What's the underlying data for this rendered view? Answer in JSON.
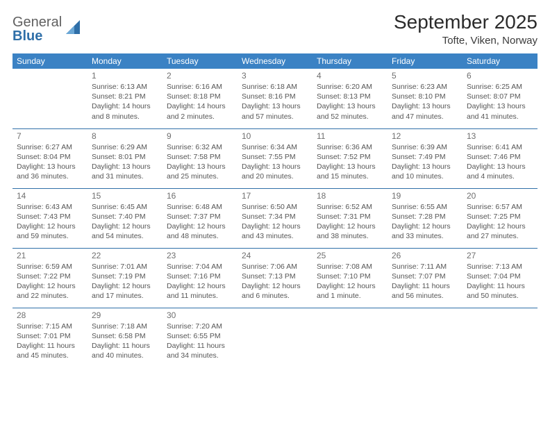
{
  "brand": {
    "general": "General",
    "blue": "Blue"
  },
  "title": "September 2025",
  "location": "Tofte, Viken, Norway",
  "colors": {
    "header_bg": "#3b82c4",
    "row_divider": "#2f6fa8",
    "text_dark": "#333333",
    "text_mid": "#555555",
    "daynum": "#6f6f6f",
    "background": "#ffffff"
  },
  "weekdays": [
    "Sunday",
    "Monday",
    "Tuesday",
    "Wednesday",
    "Thursday",
    "Friday",
    "Saturday"
  ],
  "weeks": [
    [
      null,
      {
        "n": "1",
        "rise": "Sunrise: 6:13 AM",
        "set": "Sunset: 8:21 PM",
        "day": "Daylight: 14 hours and 8 minutes."
      },
      {
        "n": "2",
        "rise": "Sunrise: 6:16 AM",
        "set": "Sunset: 8:18 PM",
        "day": "Daylight: 14 hours and 2 minutes."
      },
      {
        "n": "3",
        "rise": "Sunrise: 6:18 AM",
        "set": "Sunset: 8:16 PM",
        "day": "Daylight: 13 hours and 57 minutes."
      },
      {
        "n": "4",
        "rise": "Sunrise: 6:20 AM",
        "set": "Sunset: 8:13 PM",
        "day": "Daylight: 13 hours and 52 minutes."
      },
      {
        "n": "5",
        "rise": "Sunrise: 6:23 AM",
        "set": "Sunset: 8:10 PM",
        "day": "Daylight: 13 hours and 47 minutes."
      },
      {
        "n": "6",
        "rise": "Sunrise: 6:25 AM",
        "set": "Sunset: 8:07 PM",
        "day": "Daylight: 13 hours and 41 minutes."
      }
    ],
    [
      {
        "n": "7",
        "rise": "Sunrise: 6:27 AM",
        "set": "Sunset: 8:04 PM",
        "day": "Daylight: 13 hours and 36 minutes."
      },
      {
        "n": "8",
        "rise": "Sunrise: 6:29 AM",
        "set": "Sunset: 8:01 PM",
        "day": "Daylight: 13 hours and 31 minutes."
      },
      {
        "n": "9",
        "rise": "Sunrise: 6:32 AM",
        "set": "Sunset: 7:58 PM",
        "day": "Daylight: 13 hours and 25 minutes."
      },
      {
        "n": "10",
        "rise": "Sunrise: 6:34 AM",
        "set": "Sunset: 7:55 PM",
        "day": "Daylight: 13 hours and 20 minutes."
      },
      {
        "n": "11",
        "rise": "Sunrise: 6:36 AM",
        "set": "Sunset: 7:52 PM",
        "day": "Daylight: 13 hours and 15 minutes."
      },
      {
        "n": "12",
        "rise": "Sunrise: 6:39 AM",
        "set": "Sunset: 7:49 PM",
        "day": "Daylight: 13 hours and 10 minutes."
      },
      {
        "n": "13",
        "rise": "Sunrise: 6:41 AM",
        "set": "Sunset: 7:46 PM",
        "day": "Daylight: 13 hours and 4 minutes."
      }
    ],
    [
      {
        "n": "14",
        "rise": "Sunrise: 6:43 AM",
        "set": "Sunset: 7:43 PM",
        "day": "Daylight: 12 hours and 59 minutes."
      },
      {
        "n": "15",
        "rise": "Sunrise: 6:45 AM",
        "set": "Sunset: 7:40 PM",
        "day": "Daylight: 12 hours and 54 minutes."
      },
      {
        "n": "16",
        "rise": "Sunrise: 6:48 AM",
        "set": "Sunset: 7:37 PM",
        "day": "Daylight: 12 hours and 48 minutes."
      },
      {
        "n": "17",
        "rise": "Sunrise: 6:50 AM",
        "set": "Sunset: 7:34 PM",
        "day": "Daylight: 12 hours and 43 minutes."
      },
      {
        "n": "18",
        "rise": "Sunrise: 6:52 AM",
        "set": "Sunset: 7:31 PM",
        "day": "Daylight: 12 hours and 38 minutes."
      },
      {
        "n": "19",
        "rise": "Sunrise: 6:55 AM",
        "set": "Sunset: 7:28 PM",
        "day": "Daylight: 12 hours and 33 minutes."
      },
      {
        "n": "20",
        "rise": "Sunrise: 6:57 AM",
        "set": "Sunset: 7:25 PM",
        "day": "Daylight: 12 hours and 27 minutes."
      }
    ],
    [
      {
        "n": "21",
        "rise": "Sunrise: 6:59 AM",
        "set": "Sunset: 7:22 PM",
        "day": "Daylight: 12 hours and 22 minutes."
      },
      {
        "n": "22",
        "rise": "Sunrise: 7:01 AM",
        "set": "Sunset: 7:19 PM",
        "day": "Daylight: 12 hours and 17 minutes."
      },
      {
        "n": "23",
        "rise": "Sunrise: 7:04 AM",
        "set": "Sunset: 7:16 PM",
        "day": "Daylight: 12 hours and 11 minutes."
      },
      {
        "n": "24",
        "rise": "Sunrise: 7:06 AM",
        "set": "Sunset: 7:13 PM",
        "day": "Daylight: 12 hours and 6 minutes."
      },
      {
        "n": "25",
        "rise": "Sunrise: 7:08 AM",
        "set": "Sunset: 7:10 PM",
        "day": "Daylight: 12 hours and 1 minute."
      },
      {
        "n": "26",
        "rise": "Sunrise: 7:11 AM",
        "set": "Sunset: 7:07 PM",
        "day": "Daylight: 11 hours and 56 minutes."
      },
      {
        "n": "27",
        "rise": "Sunrise: 7:13 AM",
        "set": "Sunset: 7:04 PM",
        "day": "Daylight: 11 hours and 50 minutes."
      }
    ],
    [
      {
        "n": "28",
        "rise": "Sunrise: 7:15 AM",
        "set": "Sunset: 7:01 PM",
        "day": "Daylight: 11 hours and 45 minutes."
      },
      {
        "n": "29",
        "rise": "Sunrise: 7:18 AM",
        "set": "Sunset: 6:58 PM",
        "day": "Daylight: 11 hours and 40 minutes."
      },
      {
        "n": "30",
        "rise": "Sunrise: 7:20 AM",
        "set": "Sunset: 6:55 PM",
        "day": "Daylight: 11 hours and 34 minutes."
      },
      null,
      null,
      null,
      null
    ]
  ]
}
